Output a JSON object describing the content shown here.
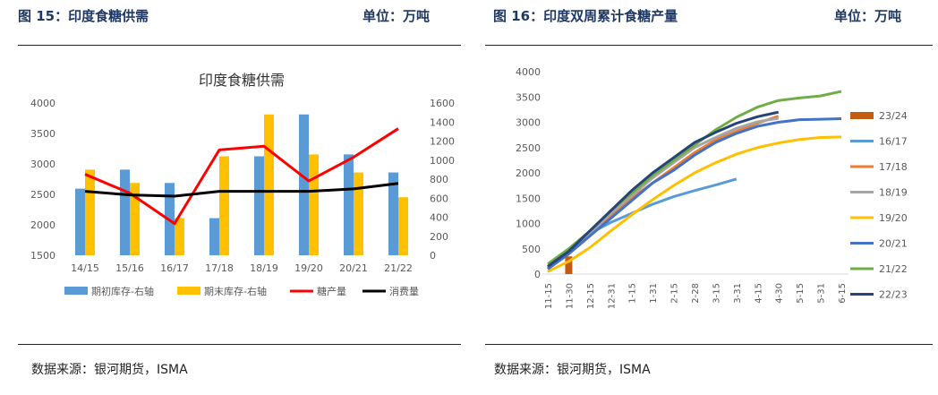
{
  "left": {
    "header_title": "图 15：印度食糖供需",
    "header_unit": "单位：万吨",
    "source": "数据来源：银河期货，ISMA"
  },
  "right": {
    "header_title": "图 16：印度双周累计食糖产量",
    "header_unit": "单位：万吨",
    "source": "数据来源：银河期货，ISMA"
  },
  "chart_data": [
    {
      "type": "bar",
      "title": "印度食糖供需",
      "categories": [
        "14/15",
        "15/16",
        "16/17",
        "17/18",
        "18/19",
        "19/20",
        "20/21",
        "21/22"
      ],
      "left_axis": {
        "ylim": [
          1500,
          4000
        ],
        "ticks": [
          1500,
          2000,
          2500,
          3000,
          3500,
          4000
        ]
      },
      "right_axis": {
        "ylim": [
          0,
          1600
        ],
        "ticks": [
          0,
          200,
          400,
          600,
          800,
          1000,
          1200,
          1400,
          1600
        ]
      },
      "series": [
        {
          "name": "期初库存-右轴",
          "type": "bar",
          "axis": "right",
          "color": "#5b9bd5",
          "values": [
            700,
            900,
            760,
            390,
            1040,
            1480,
            1060,
            870
          ]
        },
        {
          "name": "期末库存-右轴",
          "type": "bar",
          "axis": "right",
          "color": "#ffc000",
          "values": [
            900,
            760,
            390,
            1040,
            1480,
            1060,
            870,
            610
          ]
        },
        {
          "name": "糖产量",
          "type": "line",
          "axis": "left",
          "color": "#ff0000",
          "values": [
            2830,
            2520,
            2020,
            3230,
            3290,
            2720,
            3110,
            3580
          ]
        },
        {
          "name": "消费量",
          "type": "line",
          "axis": "left",
          "color": "#000000",
          "values": [
            2550,
            2490,
            2470,
            2550,
            2550,
            2550,
            2590,
            2680
          ]
        }
      ]
    },
    {
      "type": "line",
      "categories": [
        "11-15",
        "11-30",
        "12-15",
        "12-31",
        "1-15",
        "1-31",
        "2-15",
        "2-28",
        "3-15",
        "3-31",
        "4-15",
        "4-30",
        "5-15",
        "5-31",
        "6-15"
      ],
      "ylim": [
        0,
        4000
      ],
      "yticks": [
        0,
        500,
        1000,
        1500,
        2000,
        2500,
        3000,
        3500,
        4000
      ],
      "legend_position": "right",
      "series": [
        {
          "name": "23/24",
          "type": "bar",
          "color": "#c55a11",
          "values": [
            null,
            350,
            null,
            null,
            null,
            null,
            null,
            null,
            null,
            null,
            null,
            null,
            null,
            null,
            null
          ]
        },
        {
          "name": "16/17",
          "color": "#5b9bd5",
          "values": [
            120,
            450,
            800,
            1020,
            1200,
            1380,
            1530,
            1650,
            1760,
            1880,
            null,
            null,
            null,
            null,
            null
          ]
        },
        {
          "name": "17/18",
          "color": "#ed7d31",
          "values": [
            120,
            400,
            750,
            1150,
            1500,
            1800,
            2100,
            2400,
            2650,
            2820,
            2980,
            3120,
            null,
            null,
            null
          ]
        },
        {
          "name": "18/19",
          "color": "#a5a5a5",
          "values": [
            150,
            450,
            800,
            1200,
            1550,
            1900,
            2200,
            2500,
            2700,
            2880,
            3010,
            3080,
            null,
            null,
            null
          ]
        },
        {
          "name": "19/20",
          "color": "#ffc000",
          "values": [
            50,
            250,
            520,
            850,
            1170,
            1470,
            1750,
            2000,
            2200,
            2370,
            2500,
            2590,
            2660,
            2700,
            2710
          ]
        },
        {
          "name": "20/21",
          "color": "#4472c4",
          "values": [
            100,
            400,
            750,
            1100,
            1450,
            1800,
            2050,
            2350,
            2600,
            2780,
            2920,
            3000,
            3050,
            3060,
            3070
          ]
        },
        {
          "name": "21/22",
          "color": "#70ad47",
          "values": [
            200,
            500,
            850,
            1250,
            1600,
            1950,
            2250,
            2550,
            2850,
            3100,
            3300,
            3430,
            3480,
            3520,
            3610
          ]
        },
        {
          "name": "22/23",
          "color": "#264478",
          "values": [
            150,
            450,
            850,
            1250,
            1650,
            2000,
            2300,
            2600,
            2800,
            2980,
            3110,
            3200,
            null,
            null,
            null
          ]
        }
      ]
    }
  ]
}
